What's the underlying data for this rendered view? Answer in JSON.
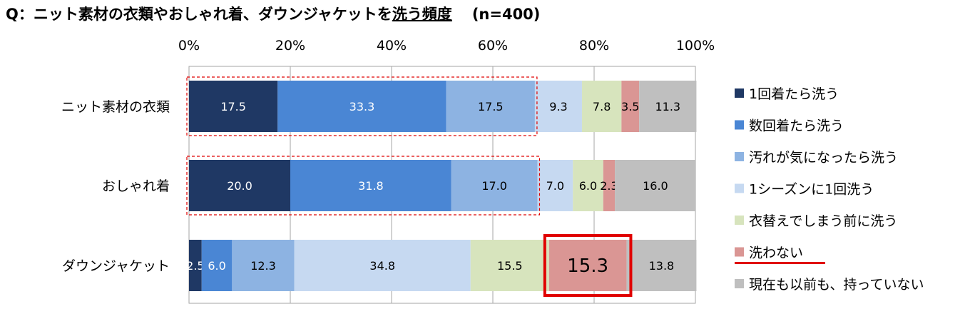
{
  "title": {
    "prefix": "Q：ニット素材の衣類やおしゃれ着、ダウンジャケットを",
    "underlined": "洗う頻度",
    "n_label": "(n=400)"
  },
  "chart_data": {
    "type": "bar",
    "orientation": "horizontal",
    "stacked": true,
    "xlim": [
      0,
      100
    ],
    "x_ticks": [
      "0%",
      "20%",
      "40%",
      "60%",
      "80%",
      "100%"
    ],
    "categories": [
      "ニット素材の衣類",
      "おしゃれ着",
      "ダウンジャケット"
    ],
    "series": [
      {
        "name": "1回着たら洗う",
        "values": [
          17.5,
          20.0,
          2.5
        ],
        "labels": [
          "17.5",
          "20.0",
          "2.5"
        ],
        "color": "#1f3864"
      },
      {
        "name": "数回着たら洗う",
        "values": [
          33.3,
          31.8,
          6.0
        ],
        "labels": [
          "33.3",
          "31.8",
          "6.0"
        ],
        "color": "#4a86d4"
      },
      {
        "name": "汚れが気になったら洗う",
        "values": [
          17.5,
          17.0,
          12.3
        ],
        "labels": [
          "17.5",
          "17.0",
          "12.3"
        ],
        "color": "#8db3e2"
      },
      {
        "name": "1シーズンに1回洗う",
        "values": [
          9.3,
          7.0,
          34.8
        ],
        "labels": [
          "9.3",
          "7.0",
          "34.8"
        ],
        "color": "#c6d9f1"
      },
      {
        "name": "衣替えでしまう前に洗う",
        "values": [
          7.8,
          6.0,
          15.5
        ],
        "labels": [
          "7.8",
          "6.0",
          "15.5"
        ],
        "color": "#d7e4bd"
      },
      {
        "name": "洗わない",
        "values": [
          3.5,
          2.3,
          15.3
        ],
        "labels": [
          "3.5",
          "2.3",
          "15.3"
        ],
        "color": "#da9694"
      },
      {
        "name": "現在も以前も、持っていない",
        "values": [
          11.3,
          16.0,
          13.8
        ],
        "labels": [
          "11.3",
          "16.0",
          "13.8"
        ],
        "color": "#bfbfbf"
      }
    ],
    "grid": true,
    "legend": "right",
    "highlight": {
      "series": "洗わない",
      "category": "ダウンジャケット"
    }
  }
}
